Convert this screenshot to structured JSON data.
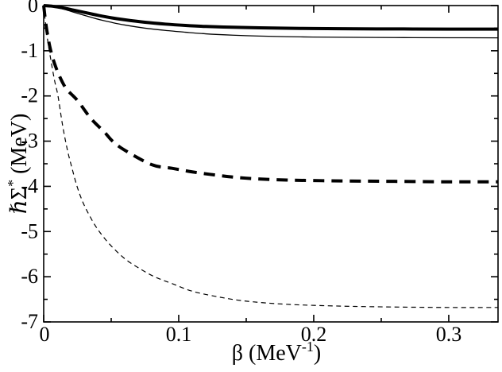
{
  "figure": {
    "background": "#ffffff",
    "line_color": "#000000"
  },
  "labels": {
    "y": {
      "main1": "ℏΣ",
      "sup": "*",
      "main2": " (MeV)"
    },
    "x": {
      "main1": "β (MeV",
      "sup": "-1",
      "main2": ")"
    }
  },
  "chart_data": {
    "type": "line",
    "title": "",
    "xlabel": "β (MeV⁻¹)",
    "ylabel": "ℏΣ* (MeV)",
    "xlim": [
      0,
      0.3365
    ],
    "ylim": [
      -7,
      0
    ],
    "grid": false,
    "legend_position": "none",
    "x_major_ticks": [
      0,
      0.1,
      0.2,
      0.3
    ],
    "x_major_tick_labels": [
      "0",
      "0.1",
      "0.2",
      "0.3"
    ],
    "x_minor_ticks": [
      0.05,
      0.15,
      0.25
    ],
    "y_major_ticks": [
      0,
      -1,
      -2,
      -3,
      -4,
      -5,
      -6,
      -7
    ],
    "y_major_tick_labels": [
      "0",
      "-1",
      "-2",
      "-3",
      "-4",
      "-5",
      "-6",
      "-7"
    ],
    "y_minor_ticks": [
      -0.5,
      -1.5,
      -2.5,
      -3.5,
      -4.5,
      -5.5,
      -6.5
    ],
    "series": [
      {
        "name": "thick-solid",
        "style": "solid",
        "stroke_width": 4,
        "dash": null,
        "asymptote": -0.52,
        "points": [
          [
            0,
            0
          ],
          [
            0.005,
            -0.01
          ],
          [
            0.01,
            -0.03
          ],
          [
            0.016,
            -0.06
          ],
          [
            0.022,
            -0.1
          ],
          [
            0.03,
            -0.15
          ],
          [
            0.04,
            -0.215
          ],
          [
            0.05,
            -0.27
          ],
          [
            0.06,
            -0.315
          ],
          [
            0.075,
            -0.37
          ],
          [
            0.09,
            -0.41
          ],
          [
            0.105,
            -0.44
          ],
          [
            0.12,
            -0.462
          ],
          [
            0.14,
            -0.48
          ],
          [
            0.16,
            -0.493
          ],
          [
            0.19,
            -0.505
          ],
          [
            0.22,
            -0.512
          ],
          [
            0.26,
            -0.517
          ],
          [
            0.3,
            -0.52
          ],
          [
            0.3365,
            -0.521
          ]
        ]
      },
      {
        "name": "thin-solid",
        "style": "solid",
        "stroke_width": 1.3,
        "dash": null,
        "asymptote": -0.71,
        "points": [
          [
            0,
            0
          ],
          [
            0.005,
            -0.015
          ],
          [
            0.01,
            -0.045
          ],
          [
            0.016,
            -0.09
          ],
          [
            0.022,
            -0.145
          ],
          [
            0.03,
            -0.215
          ],
          [
            0.04,
            -0.3
          ],
          [
            0.05,
            -0.37
          ],
          [
            0.06,
            -0.43
          ],
          [
            0.075,
            -0.5
          ],
          [
            0.09,
            -0.55
          ],
          [
            0.105,
            -0.59
          ],
          [
            0.12,
            -0.625
          ],
          [
            0.14,
            -0.655
          ],
          [
            0.16,
            -0.675
          ],
          [
            0.19,
            -0.693
          ],
          [
            0.22,
            -0.702
          ],
          [
            0.26,
            -0.708
          ],
          [
            0.3,
            -0.712
          ],
          [
            0.3365,
            -0.714
          ]
        ]
      },
      {
        "name": "thick-dashed",
        "style": "dashed",
        "stroke_width": 4,
        "dash": "14 9",
        "asymptote": -3.9,
        "points": [
          [
            0,
            0
          ],
          [
            0.0015,
            -0.38
          ],
          [
            0.003,
            -0.67
          ],
          [
            0.005,
            -0.97
          ],
          [
            0.008,
            -1.28
          ],
          [
            0.012,
            -1.58
          ],
          [
            0.017,
            -1.85
          ],
          [
            0.025,
            -2.1
          ],
          [
            0.035,
            -2.5
          ],
          [
            0.045,
            -2.8
          ],
          [
            0.051,
            -3.0
          ],
          [
            0.06,
            -3.2
          ],
          [
            0.08,
            -3.52
          ],
          [
            0.095,
            -3.6
          ],
          [
            0.11,
            -3.68
          ],
          [
            0.13,
            -3.76
          ],
          [
            0.15,
            -3.82
          ],
          [
            0.18,
            -3.86
          ],
          [
            0.22,
            -3.88
          ],
          [
            0.26,
            -3.89
          ],
          [
            0.3,
            -3.9
          ],
          [
            0.3365,
            -3.9
          ]
        ]
      },
      {
        "name": "thin-dashed",
        "style": "dashed",
        "stroke_width": 1.2,
        "dash": "6 4.5",
        "asymptote": -6.68,
        "points": [
          [
            0,
            0
          ],
          [
            0.0015,
            -0.42
          ],
          [
            0.003,
            -0.78
          ],
          [
            0.005,
            -1.15
          ],
          [
            0.008,
            -1.65
          ],
          [
            0.0106,
            -2.0
          ],
          [
            0.014,
            -2.65
          ],
          [
            0.0176,
            -3.2
          ],
          [
            0.021,
            -3.6
          ],
          [
            0.0247,
            -4.0
          ],
          [
            0.029,
            -4.35
          ],
          [
            0.034,
            -4.65
          ],
          [
            0.04,
            -4.95
          ],
          [
            0.0488,
            -5.28
          ],
          [
            0.06,
            -5.6
          ],
          [
            0.07,
            -5.8
          ],
          [
            0.082,
            -6.0
          ],
          [
            0.095,
            -6.15
          ],
          [
            0.11,
            -6.32
          ],
          [
            0.13,
            -6.45
          ],
          [
            0.15,
            -6.54
          ],
          [
            0.18,
            -6.61
          ],
          [
            0.22,
            -6.65
          ],
          [
            0.26,
            -6.67
          ],
          [
            0.3,
            -6.68
          ],
          [
            0.3365,
            -6.68
          ]
        ]
      }
    ]
  }
}
